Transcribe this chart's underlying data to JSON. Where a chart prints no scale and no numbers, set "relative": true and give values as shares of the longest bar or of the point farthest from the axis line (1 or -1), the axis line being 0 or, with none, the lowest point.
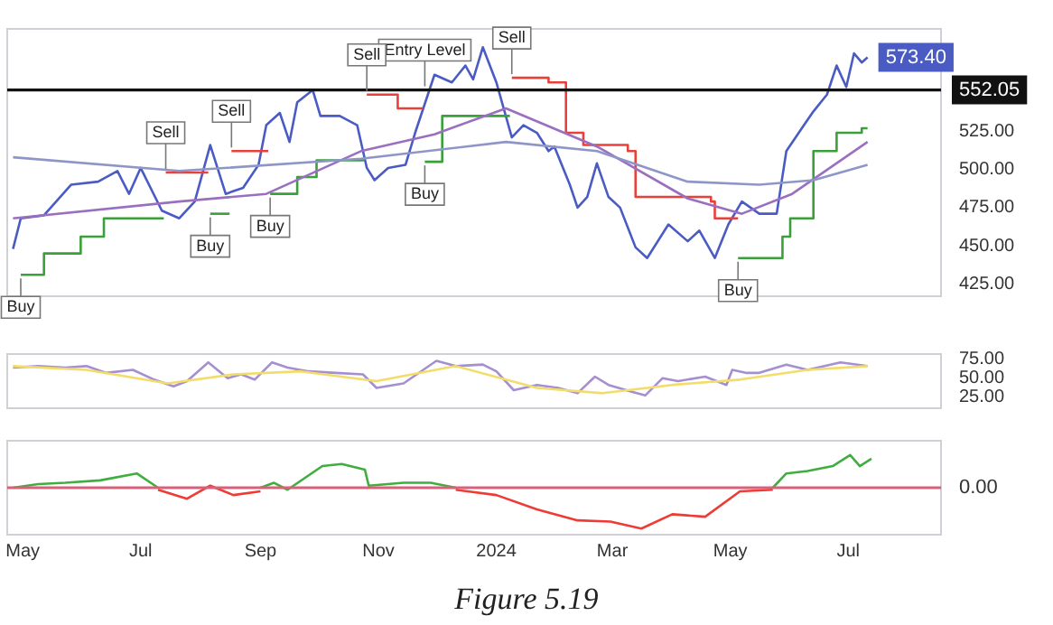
{
  "chart_data": [
    {
      "type": "line",
      "xlim": [
        "2023-04-23",
        "2024-08-18"
      ],
      "ylim": [
        417,
        592
      ],
      "yticks": [
        {
          "value": 425,
          "label": "425.00"
        },
        {
          "value": 450,
          "label": "450.00"
        },
        {
          "value": 475,
          "label": "475.00"
        },
        {
          "value": 500,
          "label": "500.00"
        },
        {
          "value": 525,
          "label": "525.00"
        }
      ],
      "tick_labels": "y",
      "ref_lines": [
        {
          "axis": "y",
          "value": 552.05,
          "label": "552.05",
          "color": "#111111"
        }
      ],
      "annotations": [
        {
          "text": "Entry Level",
          "x": "2023-11-25",
          "y": 552.05
        },
        {
          "text": "Buy",
          "x": "2023-04-30",
          "y": 431
        },
        {
          "text": "Sell",
          "x": "2023-07-14",
          "y": 498
        },
        {
          "text": "Buy",
          "x": "2023-08-06",
          "y": 471
        },
        {
          "text": "Sell",
          "x": "2023-08-17",
          "y": 512
        },
        {
          "text": "Buy",
          "x": "2023-09-06",
          "y": 484
        },
        {
          "text": "Sell",
          "x": "2023-10-26",
          "y": 549
        },
        {
          "text": "Buy",
          "x": "2023-11-25",
          "y": 505
        },
        {
          "text": "Sell",
          "x": "2024-01-09",
          "y": 560
        },
        {
          "text": "Buy",
          "x": "2024-05-05",
          "y": 442
        }
      ],
      "series": [
        {
          "color": "#8e96c8",
          "x": [
            "2023-04-26",
            "2023-07-21",
            "2023-10-23",
            "2024-01-06",
            "2024-02-22",
            "2024-04-09",
            "2024-05-16",
            "2024-06-13",
            "2024-07-11"
          ],
          "values": [
            508,
            499,
            507,
            518,
            512,
            492,
            490,
            493,
            503
          ]
        },
        {
          "color": "#9b6fc0",
          "x": [
            "2023-04-26",
            "2023-07-21",
            "2023-09-04",
            "2023-10-23",
            "2023-11-30",
            "2024-01-06",
            "2024-02-22",
            "2024-04-09",
            "2024-05-07",
            "2024-06-02",
            "2024-07-11"
          ],
          "values": [
            468,
            479,
            484,
            512,
            523,
            540,
            515,
            481,
            471,
            484,
            518
          ]
        },
        {
          "color": "#3aa03a",
          "x": [
            "2023-04-30",
            "2023-05-12",
            "2023-05-12",
            "2023-05-31",
            "2023-05-31",
            "2023-06-12",
            "2023-06-12",
            "2023-07-13"
          ],
          "values": [
            431,
            431,
            445,
            445,
            456,
            456,
            468,
            468
          ]
        },
        {
          "color": "#3aa03a",
          "x": [
            "2023-08-06",
            "2023-08-16"
          ],
          "values": [
            471,
            471
          ]
        },
        {
          "color": "#3aa03a",
          "x": [
            "2023-09-06",
            "2023-09-20",
            "2023-09-20",
            "2023-09-30",
            "2023-09-30",
            "2023-10-25"
          ],
          "values": [
            484,
            484,
            495,
            495,
            506,
            506
          ]
        },
        {
          "color": "#3aa03a",
          "x": [
            "2023-11-25",
            "2023-12-04",
            "2023-12-04",
            "2024-01-08"
          ],
          "values": [
            505,
            505,
            535,
            535
          ]
        },
        {
          "color": "#3aa03a",
          "x": [
            "2024-05-05",
            "2024-05-28",
            "2024-05-28",
            "2024-06-01",
            "2024-06-01",
            "2024-06-13",
            "2024-06-13",
            "2024-06-25",
            "2024-06-25",
            "2024-07-08",
            "2024-07-08",
            "2024-07-11"
          ],
          "values": [
            442,
            442,
            456,
            456,
            468,
            468,
            512,
            512,
            524,
            524,
            527,
            527
          ]
        },
        {
          "color": "#e8403a",
          "x": [
            "2023-07-14",
            "2023-08-05"
          ],
          "values": [
            498,
            498
          ]
        },
        {
          "color": "#e8403a",
          "x": [
            "2023-08-17",
            "2023-09-05"
          ],
          "values": [
            512,
            512
          ]
        },
        {
          "color": "#e8403a",
          "x": [
            "2023-10-26",
            "2023-11-11",
            "2023-11-11",
            "2023-11-24"
          ],
          "values": [
            549,
            549,
            540,
            540
          ]
        },
        {
          "color": "#e8403a",
          "x": [
            "2024-01-09",
            "2024-01-28",
            "2024-01-28",
            "2024-02-06",
            "2024-02-06",
            "2024-02-15",
            "2024-02-15",
            "2024-03-09",
            "2024-03-09",
            "2024-03-13",
            "2024-03-13",
            "2024-04-21",
            "2024-04-21",
            "2024-04-23",
            "2024-04-23",
            "2024-05-05"
          ],
          "values": [
            560,
            560,
            557,
            557,
            524,
            524,
            516,
            516,
            512,
            512,
            482,
            482,
            479,
            479,
            468,
            468
          ]
        },
        {
          "color": "#4a5cc4",
          "x": [
            "2023-04-26",
            "2023-04-30",
            "2023-05-12",
            "2023-05-26",
            "2023-06-09",
            "2023-06-19",
            "2023-06-25",
            "2023-07-01",
            "2023-07-12",
            "2023-07-21",
            "2023-07-29",
            "2023-08-06",
            "2023-08-14",
            "2023-08-23",
            "2023-08-31",
            "2023-09-04",
            "2023-09-11",
            "2023-09-16",
            "2023-09-20",
            "2023-09-28",
            "2023-10-02",
            "2023-10-12",
            "2023-10-21",
            "2023-10-26",
            "2023-10-30",
            "2023-11-06",
            "2023-11-15",
            "2023-11-20",
            "2023-11-30",
            "2023-12-09",
            "2023-12-16",
            "2023-12-20",
            "2023-12-25",
            "2024-01-01",
            "2024-01-09",
            "2024-01-15",
            "2024-01-22",
            "2024-01-28",
            "2024-01-31",
            "2024-02-08",
            "2024-02-12",
            "2024-02-17",
            "2024-02-22",
            "2024-02-28",
            "2024-03-05",
            "2024-03-13",
            "2024-03-19",
            "2024-03-30",
            "2024-04-09",
            "2024-04-15",
            "2024-04-23",
            "2024-04-30",
            "2024-05-07",
            "2024-05-16",
            "2024-05-25",
            "2024-05-30",
            "2024-06-07",
            "2024-06-13",
            "2024-06-20",
            "2024-06-25",
            "2024-06-30",
            "2024-07-04",
            "2024-07-08",
            "2024-07-11"
          ],
          "values": [
            448,
            468,
            470,
            490,
            492,
            499,
            484,
            501,
            473,
            468,
            479,
            516,
            484,
            488,
            503,
            529,
            537,
            518,
            544,
            552,
            535,
            535,
            529,
            501,
            493,
            501,
            503,
            524,
            562,
            557,
            568,
            559,
            580,
            557,
            521,
            529,
            524,
            512,
            515,
            490,
            475,
            482,
            504,
            482,
            475,
            449,
            442,
            464,
            453,
            460,
            442,
            464,
            479,
            471,
            471,
            512,
            527,
            538,
            549,
            568,
            554,
            576,
            570,
            573.4
          ],
          "value_labels": [
            null,
            null,
            null,
            null,
            null,
            null,
            null,
            null,
            null,
            null,
            null,
            null,
            null,
            null,
            null,
            null,
            null,
            null,
            null,
            null,
            null,
            null,
            null,
            null,
            null,
            null,
            null,
            null,
            null,
            null,
            null,
            null,
            null,
            null,
            null,
            null,
            null,
            null,
            null,
            null,
            null,
            null,
            null,
            null,
            null,
            null,
            null,
            null,
            null,
            null,
            null,
            null,
            null,
            null,
            null,
            null,
            null,
            null,
            null,
            null,
            null,
            null,
            null,
            "573.40"
          ]
        }
      ]
    },
    {
      "type": "line",
      "xlim": [
        "2023-04-23",
        "2024-08-18"
      ],
      "ylim": [
        10,
        82
      ],
      "yticks": [
        {
          "value": 25,
          "label": "25.00"
        },
        {
          "value": 50,
          "label": "50.00"
        },
        {
          "value": 75,
          "label": "75.00"
        }
      ],
      "tick_labels": "y",
      "series": [
        {
          "color": "#f2dc6a",
          "x": [
            "2023-04-26",
            "2023-06-03",
            "2023-07-15",
            "2023-08-18",
            "2023-09-22",
            "2023-10-31",
            "2023-12-11",
            "2024-01-22",
            "2024-02-25",
            "2024-04-01",
            "2024-05-06",
            "2024-06-10",
            "2024-07-11"
          ],
          "values": [
            66,
            61,
            43,
            55,
            59,
            46,
            66,
            37,
            30,
            41,
            48,
            61,
            66
          ]
        },
        {
          "color": "#a58fd0",
          "x": [
            "2023-04-26",
            "2023-05-09",
            "2023-05-23",
            "2023-06-03",
            "2023-06-13",
            "2023-06-27",
            "2023-07-08",
            "2023-07-18",
            "2023-07-25",
            "2023-08-05",
            "2023-08-15",
            "2023-08-22",
            "2023-08-29",
            "2023-09-07",
            "2023-09-15",
            "2023-09-26",
            "2023-10-10",
            "2023-10-24",
            "2023-10-31",
            "2023-11-14",
            "2023-12-01",
            "2023-12-11",
            "2023-12-25",
            "2024-01-01",
            "2024-01-10",
            "2024-01-22",
            "2024-02-02",
            "2024-02-12",
            "2024-02-21",
            "2024-02-28",
            "2024-03-11",
            "2024-03-18",
            "2024-03-27",
            "2024-04-04",
            "2024-04-18",
            "2024-04-29",
            "2024-05-02",
            "2024-05-09",
            "2024-05-16",
            "2024-05-30",
            "2024-06-10",
            "2024-06-27",
            "2024-07-11"
          ],
          "values": [
            64,
            66,
            64,
            66,
            57,
            61,
            48,
            39,
            46,
            71,
            50,
            55,
            48,
            71,
            64,
            59,
            57,
            55,
            37,
            43,
            73,
            66,
            68,
            59,
            34,
            41,
            37,
            30,
            52,
            41,
            32,
            27,
            50,
            46,
            52,
            41,
            61,
            57,
            57,
            68,
            61,
            71,
            66
          ]
        }
      ]
    },
    {
      "type": "line",
      "relative": true,
      "title": "Figure 5.19",
      "xlim": [
        "2023-04-23",
        "2024-08-18"
      ],
      "xticks": [
        {
          "value": "2023-05-01",
          "label": "May"
        },
        {
          "value": "2023-07-01",
          "label": "Jul"
        },
        {
          "value": "2023-09-01",
          "label": "Sep"
        },
        {
          "value": "2023-11-01",
          "label": "Nov"
        },
        {
          "value": "2024-01-01",
          "label": "2024"
        },
        {
          "value": "2024-03-01",
          "label": "Mar"
        },
        {
          "value": "2024-05-01",
          "label": "May"
        },
        {
          "value": "2024-07-01",
          "label": "Jul"
        }
      ],
      "tick_labels": "x",
      "ref_lines": [
        {
          "axis": "y",
          "value": 0,
          "label": "0.00",
          "color": "#d9607a"
        }
      ],
      "x": [
        "2023-04-26",
        "2023-05-09",
        "2023-05-23",
        "2023-06-10",
        "2023-06-29",
        "2023-07-10",
        "2023-07-25",
        "2023-08-06",
        "2023-08-18",
        "2023-09-01",
        "2023-09-08",
        "2023-09-15",
        "2023-10-03",
        "2023-10-13",
        "2023-10-25",
        "2023-10-27",
        "2023-11-14",
        "2023-11-28",
        "2023-12-11",
        "2024-01-01",
        "2024-01-22",
        "2024-02-12",
        "2024-02-29",
        "2024-03-16",
        "2024-04-01",
        "2024-04-18",
        "2024-05-06",
        "2024-05-23",
        "2024-05-30",
        "2024-06-10",
        "2024-06-23",
        "2024-07-02",
        "2024-07-07",
        "2024-07-13"
      ],
      "series": [
        {
          "color": "#3fae3f",
          "values": [
            0,
            0.09,
            0.12,
            0.18,
            0.35,
            0,
            null,
            null,
            null,
            0,
            0.12,
            -0.05,
            0.53,
            0.58,
            0.44,
            0.05,
            0.12,
            0.12,
            0,
            null,
            null,
            null,
            null,
            null,
            null,
            null,
            null,
            0,
            0.35,
            0.41,
            0.53,
            0.8,
            0.53,
            0.71
          ]
        },
        {
          "color": "#ee3b36",
          "values": [
            null,
            null,
            null,
            null,
            null,
            -0.05,
            -0.27,
            0.05,
            -0.18,
            -0.09,
            null,
            null,
            null,
            null,
            null,
            null,
            null,
            null,
            -0.05,
            -0.18,
            -0.53,
            -0.8,
            -0.83,
            -1,
            -0.65,
            -0.71,
            -0.09,
            -0.05,
            null,
            null,
            null,
            null,
            null,
            null
          ]
        }
      ]
    }
  ]
}
